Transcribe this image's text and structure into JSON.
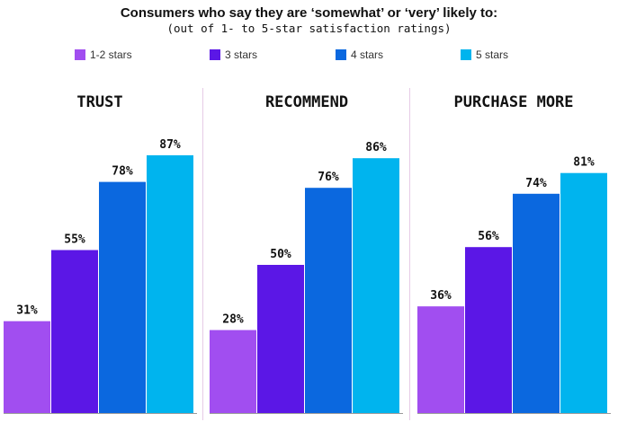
{
  "chart_data": {
    "type": "bar",
    "title": "Consumers who say they are ‘somewhat’ or ‘very’ likely to:",
    "subtitle": "(out of 1- to 5-star satisfaction ratings)",
    "legend_position": "top",
    "ylim": [
      0,
      100
    ],
    "grid": false,
    "categories": [
      "TRUST",
      "RECOMMEND",
      "PURCHASE MORE"
    ],
    "series": [
      {
        "name": "1-2 stars",
        "color": "#a14ef0",
        "values": [
          31,
          28,
          36
        ],
        "labels": [
          "31%",
          "28%",
          "36%"
        ]
      },
      {
        "name": "3 stars",
        "color": "#5b17e6",
        "values": [
          55,
          50,
          56
        ],
        "labels": [
          "55%",
          "50%",
          "56%"
        ]
      },
      {
        "name": "4 stars",
        "color": "#0b68df",
        "values": [
          78,
          76,
          74
        ],
        "labels": [
          "78%",
          "76%",
          "74%"
        ]
      },
      {
        "name": "5 stars",
        "color": "#00b4ee",
        "values": [
          87,
          86,
          81
        ],
        "labels": [
          "87%",
          "86%",
          "81%"
        ]
      }
    ]
  }
}
